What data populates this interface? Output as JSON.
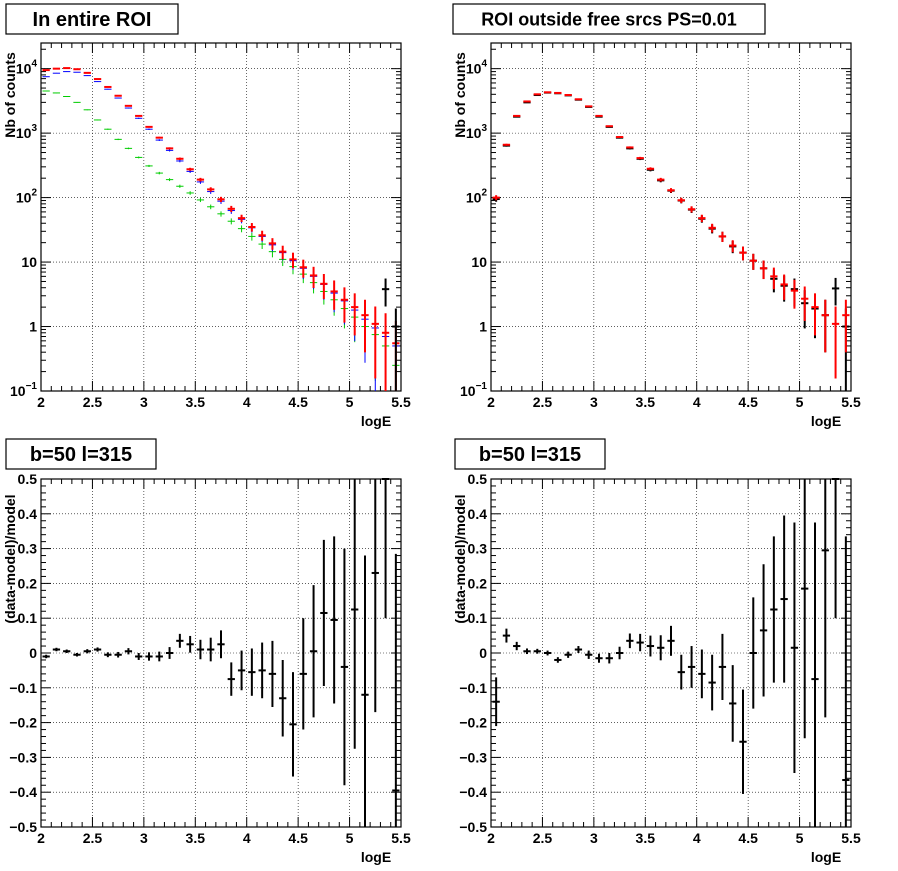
{
  "chart_data": [
    {
      "type": "scatter",
      "title": "In entire ROI",
      "xlabel": "logE",
      "ylabel": "Nb of counts",
      "xlim": [
        2,
        5.5
      ],
      "ylim": [
        0.1,
        25000
      ],
      "yscale": "log",
      "grid": true,
      "xticks": [
        "2",
        "2.5",
        "3",
        "3.5",
        "4",
        "4.5",
        "5",
        "5.5"
      ],
      "yticks": [
        {
          "v": 0.1,
          "b": "10",
          "e": "−1"
        },
        {
          "v": 1,
          "b": "1",
          "e": ""
        },
        {
          "v": 10,
          "b": "10",
          "e": ""
        },
        {
          "v": 100,
          "b": "10",
          "e": "2"
        },
        {
          "v": 1000,
          "b": "10",
          "e": "3"
        },
        {
          "v": 10000,
          "b": "10",
          "e": "4"
        }
      ],
      "series": [
        {
          "color": "#00cc00",
          "values": [
            4500,
            4200,
            3700,
            3000,
            2300,
            1600,
            1150,
            800,
            580,
            420,
            310,
            240,
            190,
            150,
            118,
            92,
            72,
            56,
            43,
            33,
            25,
            19,
            14.5,
            11,
            8.5,
            6.5,
            4.8,
            3.5,
            2.6,
            1.9,
            1.4,
            1.0,
            0.75,
            0.5,
            0.25
          ]
        },
        {
          "color": "#0000ff",
          "values": [
            7500,
            8500,
            9000,
            8800,
            7800,
            6300,
            4800,
            3500,
            2450,
            1700,
            1150,
            780,
            540,
            370,
            255,
            175,
            124,
            88,
            63,
            46,
            34,
            25,
            18.5,
            14,
            10.5,
            8,
            6,
            4.5,
            3.3,
            2.5,
            1.8,
            1.3,
            0.95,
            0.7,
            0.5
          ]
        },
        {
          "color": "#ff0000",
          "values": [
            9500,
            10000,
            10200,
            9800,
            8600,
            6900,
            5200,
            3800,
            2650,
            1850,
            1250,
            850,
            580,
            400,
            275,
            190,
            134,
            94,
            67,
            48,
            35,
            26,
            19.5,
            14.5,
            11,
            8.3,
            6.2,
            4.6,
            3.5,
            2.6,
            2.0,
            1.5,
            1.1,
            0.8,
            0.55
          ]
        },
        {
          "color": "#000000",
          "values": [
            null,
            null,
            null,
            null,
            null,
            null,
            null,
            null,
            null,
            null,
            null,
            null,
            null,
            null,
            null,
            null,
            null,
            null,
            null,
            null,
            null,
            null,
            null,
            null,
            null,
            null,
            null,
            null,
            null,
            null,
            null,
            null,
            null,
            3.8,
            1.0
          ]
        }
      ]
    },
    {
      "type": "scatter",
      "title": "ROI outside free srcs PS=0.01",
      "xlabel": "logE",
      "ylabel": "Nb of counts",
      "xlim": [
        2,
        5.5
      ],
      "ylim": [
        0.1,
        25000
      ],
      "yscale": "log",
      "grid": true,
      "xticks": [
        "2",
        "2.5",
        "3",
        "3.5",
        "4",
        "4.5",
        "5",
        "5.5"
      ],
      "yticks": [
        {
          "v": 0.1,
          "b": "10",
          "e": "−1"
        },
        {
          "v": 1,
          "b": "1",
          "e": ""
        },
        {
          "v": 10,
          "b": "10",
          "e": ""
        },
        {
          "v": 100,
          "b": "10",
          "e": "2"
        },
        {
          "v": 1000,
          "b": "10",
          "e": "3"
        },
        {
          "v": 10000,
          "b": "10",
          "e": "4"
        }
      ],
      "series": [
        {
          "color": "#000000",
          "values": [
            95,
            640,
            1800,
            3000,
            3900,
            4250,
            4150,
            3850,
            3300,
            2550,
            1800,
            1250,
            850,
            580,
            400,
            270,
            185,
            128,
            90,
            65,
            47,
            33,
            25,
            17.5,
            14,
            10.5,
            8,
            5.5,
            4.3,
            3.8,
            2.3,
            1.9,
            1.5,
            3.9,
            1.0
          ]
        },
        {
          "color": "#ff0000",
          "values": [
            100,
            660,
            1850,
            3100,
            4000,
            4300,
            4200,
            3900,
            3350,
            2600,
            1850,
            1280,
            870,
            600,
            410,
            280,
            190,
            130,
            91,
            66,
            48,
            34,
            25,
            18,
            14,
            10.5,
            8,
            6,
            4.5,
            3.6,
            2.7,
            2.0,
            1.5,
            1.1,
            1.5
          ]
        }
      ]
    },
    {
      "type": "scatter",
      "title": "b=50 l=315",
      "xlabel": "logE",
      "ylabel": "(data-model)/model",
      "xlim": [
        2,
        5.5
      ],
      "ylim": [
        -0.5,
        0.5
      ],
      "grid": true,
      "xticks": [
        "2",
        "2.5",
        "3",
        "3.5",
        "4",
        "4.5",
        "5",
        "5.5"
      ],
      "yticks": [
        "−0.5",
        "−0.4",
        "−0.3",
        "−0.2",
        "−0.1",
        "0",
        "0.1",
        "0.2",
        "0.3",
        "0.4",
        "0.5"
      ],
      "series": [
        {
          "color": "#000000",
          "values": [
            -0.01,
            0.01,
            0.005,
            -0.005,
            0.005,
            0.01,
            -0.005,
            -0.005,
            0.005,
            -0.01,
            -0.01,
            -0.01,
            0.0,
            0.035,
            0.025,
            0.01,
            0.01,
            0.025,
            -0.075,
            -0.05,
            -0.055,
            -0.05,
            -0.06,
            -0.13,
            -0.205,
            -0.06,
            0.005,
            0.115,
            0.095,
            -0.04,
            0.125,
            -0.12,
            0.23,
            0.5,
            -0.395
          ],
          "errors": [
            0.005,
            0.005,
            0.005,
            0.005,
            0.006,
            0.006,
            0.007,
            0.008,
            0.009,
            0.01,
            0.012,
            0.014,
            0.017,
            0.02,
            0.024,
            0.028,
            0.034,
            0.04,
            0.048,
            0.057,
            0.068,
            0.08,
            0.095,
            0.11,
            0.15,
            0.16,
            0.19,
            0.21,
            0.24,
            0.34,
            0.4,
            0.4,
            0.4,
            0.4,
            0.68
          ]
        }
      ]
    },
    {
      "type": "scatter",
      "title": "b=50 l=315",
      "xlabel": "logE",
      "ylabel": "(data-model)/model",
      "xlim": [
        2,
        5.5
      ],
      "ylim": [
        -0.5,
        0.5
      ],
      "grid": true,
      "xticks": [
        "2",
        "2.5",
        "3",
        "3.5",
        "4",
        "4.5",
        "5",
        "5.5"
      ],
      "yticks": [
        "−0.5",
        "−0.4",
        "−0.3",
        "−0.2",
        "−0.1",
        "0",
        "0.1",
        "0.2",
        "0.3",
        "0.4",
        "0.5"
      ],
      "series": [
        {
          "color": "#000000",
          "values": [
            -0.14,
            0.05,
            0.02,
            0.005,
            0.005,
            0.0,
            -0.02,
            -0.005,
            0.01,
            -0.005,
            -0.015,
            -0.015,
            0.0,
            0.035,
            0.03,
            0.02,
            0.015,
            0.035,
            -0.055,
            -0.04,
            -0.06,
            -0.085,
            -0.04,
            -0.145,
            -0.255,
            0.0,
            0.065,
            0.125,
            0.155,
            0.015,
            0.185,
            -0.075,
            0.295,
            0.5,
            -0.365
          ],
          "errors": [
            0.07,
            0.02,
            0.012,
            0.008,
            0.007,
            0.007,
            0.008,
            0.009,
            0.01,
            0.012,
            0.013,
            0.015,
            0.018,
            0.021,
            0.025,
            0.03,
            0.036,
            0.043,
            0.05,
            0.06,
            0.07,
            0.08,
            0.095,
            0.11,
            0.15,
            0.16,
            0.19,
            0.21,
            0.24,
            0.36,
            0.43,
            0.45,
            0.48,
            0.4,
            0.7
          ]
        }
      ]
    }
  ]
}
